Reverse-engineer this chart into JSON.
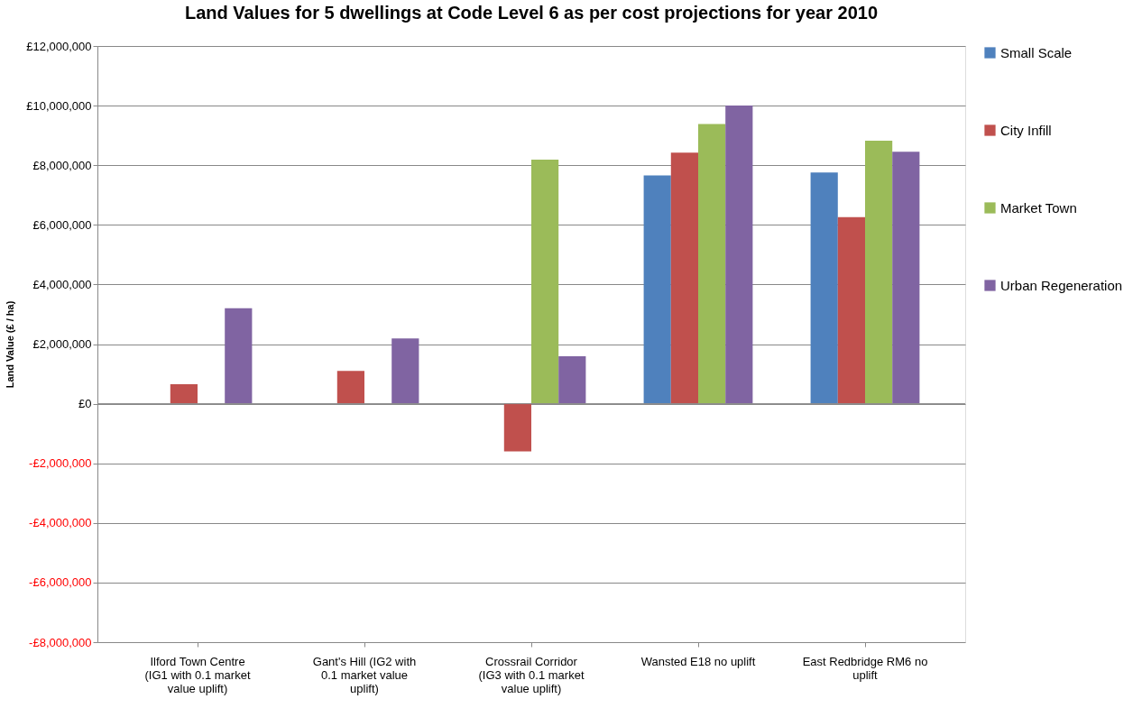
{
  "chart_data": {
    "type": "bar",
    "title": "Land Values for 5 dwellings at Code Level 6 as per cost projections for year 2010",
    "ylabel": "Land Value (£ / ha)",
    "categories": [
      "Ilford Town Centre (IG1 with 0.1 market value uplift)",
      "Gant's Hill (IG2 with 0.1 market value uplift)",
      "Crossrail Corridor (IG3 with 0.1 market value uplift)",
      "Wansted E18 no uplift",
      "East Redbridge RM6 no uplift"
    ],
    "series": [
      {
        "name": "Small Scale",
        "color": "#4f81bd",
        "values": [
          null,
          null,
          null,
          7660000,
          7760000
        ]
      },
      {
        "name": "City Infill",
        "color": "#c0504d",
        "values": [
          650000,
          1100000,
          -1600000,
          8420000,
          6260000
        ]
      },
      {
        "name": "Market Town",
        "color": "#9bbb59",
        "values": [
          null,
          null,
          8190000,
          9380000,
          8820000
        ]
      },
      {
        "name": "Urban Regeneration",
        "color": "#8064a2",
        "values": [
          3200000,
          2190000,
          1590000,
          10000000,
          8450000
        ]
      }
    ],
    "ylim": [
      -8000000,
      12000000
    ],
    "yticks": [
      {
        "value": -8000000,
        "label": "-£8,000,000"
      },
      {
        "value": -6000000,
        "label": "-£6,000,000"
      },
      {
        "value": -4000000,
        "label": "-£4,000,000"
      },
      {
        "value": -2000000,
        "label": "-£2,000,000"
      },
      {
        "value": 0,
        "label": "£0"
      },
      {
        "value": 2000000,
        "label": "£2,000,000"
      },
      {
        "value": 4000000,
        "label": "£4,000,000"
      },
      {
        "value": 6000000,
        "label": "£6,000,000"
      },
      {
        "value": 8000000,
        "label": "£8,000,000"
      },
      {
        "value": 10000000,
        "label": "£10,000,000"
      },
      {
        "value": 12000000,
        "label": "£12,000,000"
      }
    ],
    "grid": "y",
    "legend": "right"
  }
}
